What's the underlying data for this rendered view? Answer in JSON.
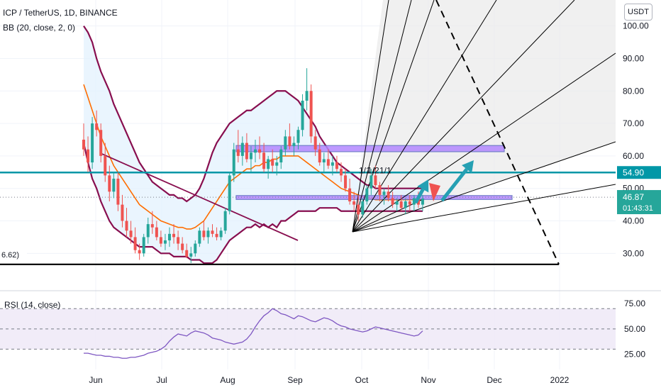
{
  "legend": {
    "symbol_line": "ICP / TetherUS, 1D, BINANCE",
    "indicator_line": "BB (20, close, 2, 0)",
    "rsi_line": "RSI (14, close)"
  },
  "currency_label": "USDT",
  "price_tags": {
    "level_label": "54.90",
    "last_price": "46.87",
    "countdown": "01:43:31"
  },
  "left_label": "6.62)",
  "fan_labels": [
    "1/1",
    "1/2",
    "1/1"
  ],
  "colors": {
    "bull": "#26a69a",
    "bear": "#ef5350",
    "bb_band": "#880e4f",
    "bb_basis": "#ff6d00",
    "level_line": "#0097a7",
    "zone_fill": "#b388ff",
    "rsi_line": "#7e57c2",
    "rsi_fill": "#ede7f6"
  },
  "chart_data": {
    "type": "candlestick",
    "price_axis": {
      "ticks": [
        "100.00",
        "90.00",
        "80.00",
        "70.00",
        "60.00",
        "50.00",
        "40.00",
        "30.00"
      ],
      "ylim": [
        18.5,
        108
      ]
    },
    "time_axis": {
      "ticks": [
        "Jun",
        "Jul",
        "Aug",
        "Sep",
        "Oct",
        "Nov",
        "Dec",
        "2022"
      ]
    },
    "rsi_axis": {
      "ticks": [
        "75.00",
        "50.00",
        "25.00"
      ],
      "ylim": [
        10,
        87
      ]
    },
    "candles_ohlc": [
      [
        65,
        70,
        60,
        62
      ],
      [
        62,
        66,
        55,
        58
      ],
      [
        58,
        72,
        56,
        70
      ],
      [
        70,
        74,
        66,
        68
      ],
      [
        68,
        70,
        58,
        60
      ],
      [
        60,
        64,
        52,
        54
      ],
      [
        54,
        57,
        46,
        49
      ],
      [
        49,
        55,
        47,
        53
      ],
      [
        53,
        55,
        43,
        45
      ],
      [
        45,
        48,
        38,
        40
      ],
      [
        40,
        44,
        35,
        37
      ],
      [
        37,
        40,
        33,
        35
      ],
      [
        35,
        38,
        30,
        31
      ],
      [
        31,
        33,
        28,
        30
      ],
      [
        30,
        36,
        29,
        35
      ],
      [
        35,
        41,
        33,
        39
      ],
      [
        39,
        43,
        36,
        38
      ],
      [
        38,
        40,
        34,
        35
      ],
      [
        35,
        37,
        32,
        33
      ],
      [
        33,
        36,
        31,
        34
      ],
      [
        34,
        38,
        32,
        36
      ],
      [
        36,
        39,
        33,
        35
      ],
      [
        35,
        37,
        31,
        33
      ],
      [
        33,
        35,
        30,
        31
      ],
      [
        31,
        33,
        28.5,
        29
      ],
      [
        29,
        32,
        27,
        30
      ],
      [
        30,
        34,
        29,
        33
      ],
      [
        33,
        38,
        32,
        37
      ],
      [
        37,
        40,
        34,
        35
      ],
      [
        35,
        38,
        33,
        37
      ],
      [
        37,
        39,
        35,
        36
      ],
      [
        36,
        38,
        34,
        35
      ],
      [
        35,
        38,
        34,
        37
      ],
      [
        37,
        44,
        36,
        43
      ],
      [
        43,
        55,
        42,
        54
      ],
      [
        54,
        64,
        52,
        62
      ],
      [
        62,
        68,
        58,
        60
      ],
      [
        60,
        66,
        57,
        64
      ],
      [
        64,
        67,
        58,
        59
      ],
      [
        59,
        63,
        55,
        61
      ],
      [
        61,
        65,
        58,
        62
      ],
      [
        62,
        66,
        59,
        61
      ],
      [
        61,
        64,
        55,
        56
      ],
      [
        56,
        60,
        53,
        59
      ],
      [
        59,
        62,
        55,
        57
      ],
      [
        57,
        60,
        54,
        58
      ],
      [
        58,
        63,
        56,
        62
      ],
      [
        62,
        68,
        60,
        66
      ],
      [
        66,
        70,
        62,
        63
      ],
      [
        63,
        66,
        60,
        64
      ],
      [
        64,
        69,
        62,
        68
      ],
      [
        68,
        79,
        66,
        77
      ],
      [
        77,
        87,
        74,
        80
      ],
      [
        80,
        82,
        64,
        66
      ],
      [
        66,
        68,
        60,
        62
      ],
      [
        62,
        64,
        57,
        58
      ],
      [
        58,
        61,
        55,
        59
      ],
      [
        59,
        62,
        56,
        57
      ],
      [
        57,
        60,
        54,
        58
      ],
      [
        58,
        60,
        55,
        56
      ],
      [
        56,
        58,
        52,
        54
      ],
      [
        54,
        56,
        49,
        50
      ],
      [
        50,
        53,
        45,
        46
      ],
      [
        46,
        49,
        43,
        45
      ],
      [
        45,
        48,
        40,
        42
      ],
      [
        42,
        47,
        41,
        46
      ],
      [
        46,
        51,
        45,
        50
      ],
      [
        50,
        56,
        48,
        54
      ],
      [
        54,
        57,
        50,
        51
      ],
      [
        51,
        52,
        46,
        48
      ],
      [
        48,
        50,
        45,
        49
      ],
      [
        49,
        51,
        46,
        47
      ],
      [
        47,
        49,
        44,
        45
      ],
      [
        45,
        47,
        43,
        46
      ],
      [
        46,
        48,
        43,
        44
      ],
      [
        44,
        47,
        42,
        46
      ],
      [
        46,
        48,
        43,
        45
      ],
      [
        45,
        48,
        43,
        47
      ],
      [
        47,
        49,
        44,
        45
      ],
      [
        45,
        48,
        43,
        46.87
      ]
    ],
    "bollinger": {
      "upper": [
        100,
        98,
        95,
        90,
        86,
        83,
        80,
        76,
        73,
        70,
        67,
        64,
        61,
        58,
        56,
        54,
        52,
        51,
        50,
        49,
        48,
        48,
        47,
        47,
        46,
        47,
        48,
        50,
        53,
        57,
        61,
        64,
        66,
        68,
        70,
        71,
        72,
        73,
        74,
        74,
        75,
        76,
        77,
        78,
        79,
        80,
        80,
        80,
        79,
        78,
        77,
        75,
        73,
        71,
        69,
        66,
        64,
        62,
        60,
        58,
        57,
        56,
        55,
        54,
        53,
        52,
        51,
        51,
        50,
        50,
        50,
        50,
        50,
        50,
        50,
        50,
        50,
        50,
        50,
        50
      ],
      "basis": [
        82,
        78,
        74,
        70,
        66,
        63,
        60,
        57,
        55,
        53,
        51,
        49,
        47,
        45,
        44,
        43,
        42,
        41,
        40,
        39.5,
        39,
        38.5,
        38,
        38,
        37.5,
        37.5,
        38,
        39,
        40,
        42,
        44,
        46,
        48,
        50,
        52,
        53,
        54,
        55,
        56,
        56,
        57,
        57,
        58,
        58,
        59,
        59,
        60,
        60,
        60,
        60,
        60,
        59,
        58,
        57,
        56,
        55,
        54,
        53,
        52,
        51,
        50,
        49.5,
        49,
        48.5,
        48,
        47.5,
        47,
        47,
        46.5,
        46.5,
        46.5,
        46.5,
        46.5,
        46.5,
        46.5,
        46.5,
        46.5,
        46.5,
        46.5,
        46.5
      ],
      "lower": [
        64,
        58,
        53,
        50,
        46,
        43,
        40,
        38,
        37,
        36,
        35,
        34,
        33,
        32,
        32,
        32,
        32,
        31,
        30,
        30,
        30,
        29,
        29,
        29,
        29,
        28,
        28,
        28,
        27,
        27,
        27,
        28,
        30,
        32,
        34,
        35,
        36,
        37,
        38,
        38,
        39,
        38,
        39,
        38,
        39,
        38,
        40,
        40,
        41,
        42,
        43,
        43,
        43,
        43,
        43,
        44,
        44,
        44,
        44,
        44,
        43,
        43,
        43,
        43,
        43,
        43,
        43,
        43,
        43,
        43,
        43,
        43,
        43,
        43,
        43,
        43,
        43,
        43,
        43,
        43
      ]
    },
    "horizontal_levels": [
      54.9,
      26.62
    ],
    "zones": [
      {
        "low": 61.3,
        "high": 63.2
      },
      {
        "low": 46.6,
        "high": 47.8
      }
    ],
    "rsi": [
      26,
      26,
      25,
      24,
      24,
      23,
      23,
      22,
      22,
      21,
      21,
      22,
      22,
      23,
      24,
      26,
      27,
      28,
      30,
      33,
      38,
      42,
      45,
      44,
      43,
      46,
      48,
      47,
      46,
      44,
      41,
      40,
      39,
      37,
      36,
      35,
      36,
      37,
      40,
      45,
      52,
      58,
      63,
      66,
      70,
      68,
      65,
      64,
      62,
      60,
      63,
      62,
      60,
      58,
      57,
      59,
      61,
      60,
      58,
      55,
      53,
      52,
      50,
      49,
      48,
      47,
      48,
      50,
      52,
      51,
      50,
      49,
      48,
      47,
      46,
      45,
      44,
      43,
      44,
      48
    ]
  }
}
